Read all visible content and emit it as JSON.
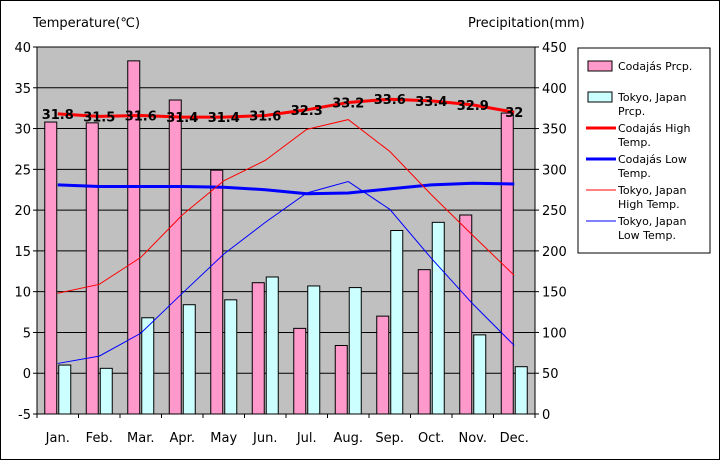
{
  "chart_data": {
    "type": "bar+line",
    "categories": [
      "Jan.",
      "Feb.",
      "Mar.",
      "Apr.",
      "May",
      "Jun.",
      "Jul.",
      "Aug.",
      "Sep.",
      "Oct.",
      "Nov.",
      "Dec."
    ],
    "left_axis": {
      "title": "Temperature(℃)",
      "min": -5,
      "max": 40,
      "step": 5
    },
    "right_axis": {
      "title": "Precipitation(mm)",
      "min": 0,
      "max": 450,
      "step": 50
    },
    "bar_series": [
      {
        "name": "Codajás Prcp.",
        "color": "#ff99cc",
        "axis": "right",
        "values": [
          358,
          357,
          433,
          385,
          299,
          161,
          105,
          84,
          120,
          177,
          244,
          369
        ]
      },
      {
        "name": "Tokyo, Japan Prcp.",
        "color": "#ccffff",
        "axis": "right",
        "values": [
          60,
          56,
          118,
          134,
          140,
          168,
          157,
          155,
          225,
          235,
          97,
          58
        ]
      }
    ],
    "line_series": [
      {
        "name": "Codajás High Temp.",
        "color": "#ff0000",
        "width": 3,
        "axis": "left",
        "values": [
          31.8,
          31.5,
          31.6,
          31.4,
          31.4,
          31.6,
          32.3,
          33.2,
          33.6,
          33.4,
          32.9,
          32
        ],
        "labels": [
          "31.8",
          "31.5",
          "31.6",
          "31.4",
          "31.4",
          "31.6",
          "32.3",
          "33.2",
          "33.6",
          "33.4",
          "32.9",
          "32"
        ]
      },
      {
        "name": "Codajás Low Temp.",
        "color": "#0000ff",
        "width": 3,
        "axis": "left",
        "values": [
          23.1,
          22.9,
          22.9,
          22.9,
          22.8,
          22.5,
          22.0,
          22.1,
          22.6,
          23.1,
          23.3,
          23.2
        ]
      },
      {
        "name": "Tokyo, Japan High Temp.",
        "color": "#ff0000",
        "width": 1,
        "axis": "left",
        "values": [
          9.8,
          10.9,
          14.2,
          19.4,
          23.6,
          26.1,
          29.9,
          31.1,
          27.2,
          21.9,
          16.9,
          12.0
        ]
      },
      {
        "name": "Tokyo, Japan Low Temp.",
        "color": "#0000ff",
        "width": 1,
        "axis": "left",
        "values": [
          1.2,
          2.1,
          4.9,
          9.8,
          14.6,
          18.5,
          22.1,
          23.5,
          20.1,
          14.1,
          8.5,
          3.4
        ]
      }
    ],
    "legend": {
      "position": "right",
      "entries": [
        {
          "kind": "bar",
          "series": "Codajás Prcp.",
          "lines": [
            "Codajás Prcp."
          ]
        },
        {
          "kind": "bar",
          "series": "Tokyo, Japan Prcp.",
          "lines": [
            "Tokyo, Japan",
            "Prcp."
          ]
        },
        {
          "kind": "line",
          "series": "Codajás High Temp.",
          "lines": [
            "Codajás High",
            "Temp."
          ]
        },
        {
          "kind": "line",
          "series": "Codajás Low Temp.",
          "lines": [
            "Codajás Low",
            "Temp."
          ]
        },
        {
          "kind": "line",
          "series": "Tokyo, Japan High Temp.",
          "lines": [
            "Tokyo, Japan",
            "High Temp."
          ]
        },
        {
          "kind": "line",
          "series": "Tokyo, Japan Low Temp.",
          "lines": [
            "Tokyo, Japan",
            "Low Temp."
          ]
        }
      ]
    },
    "plot_background": "#c0c0c0",
    "grid": true
  }
}
